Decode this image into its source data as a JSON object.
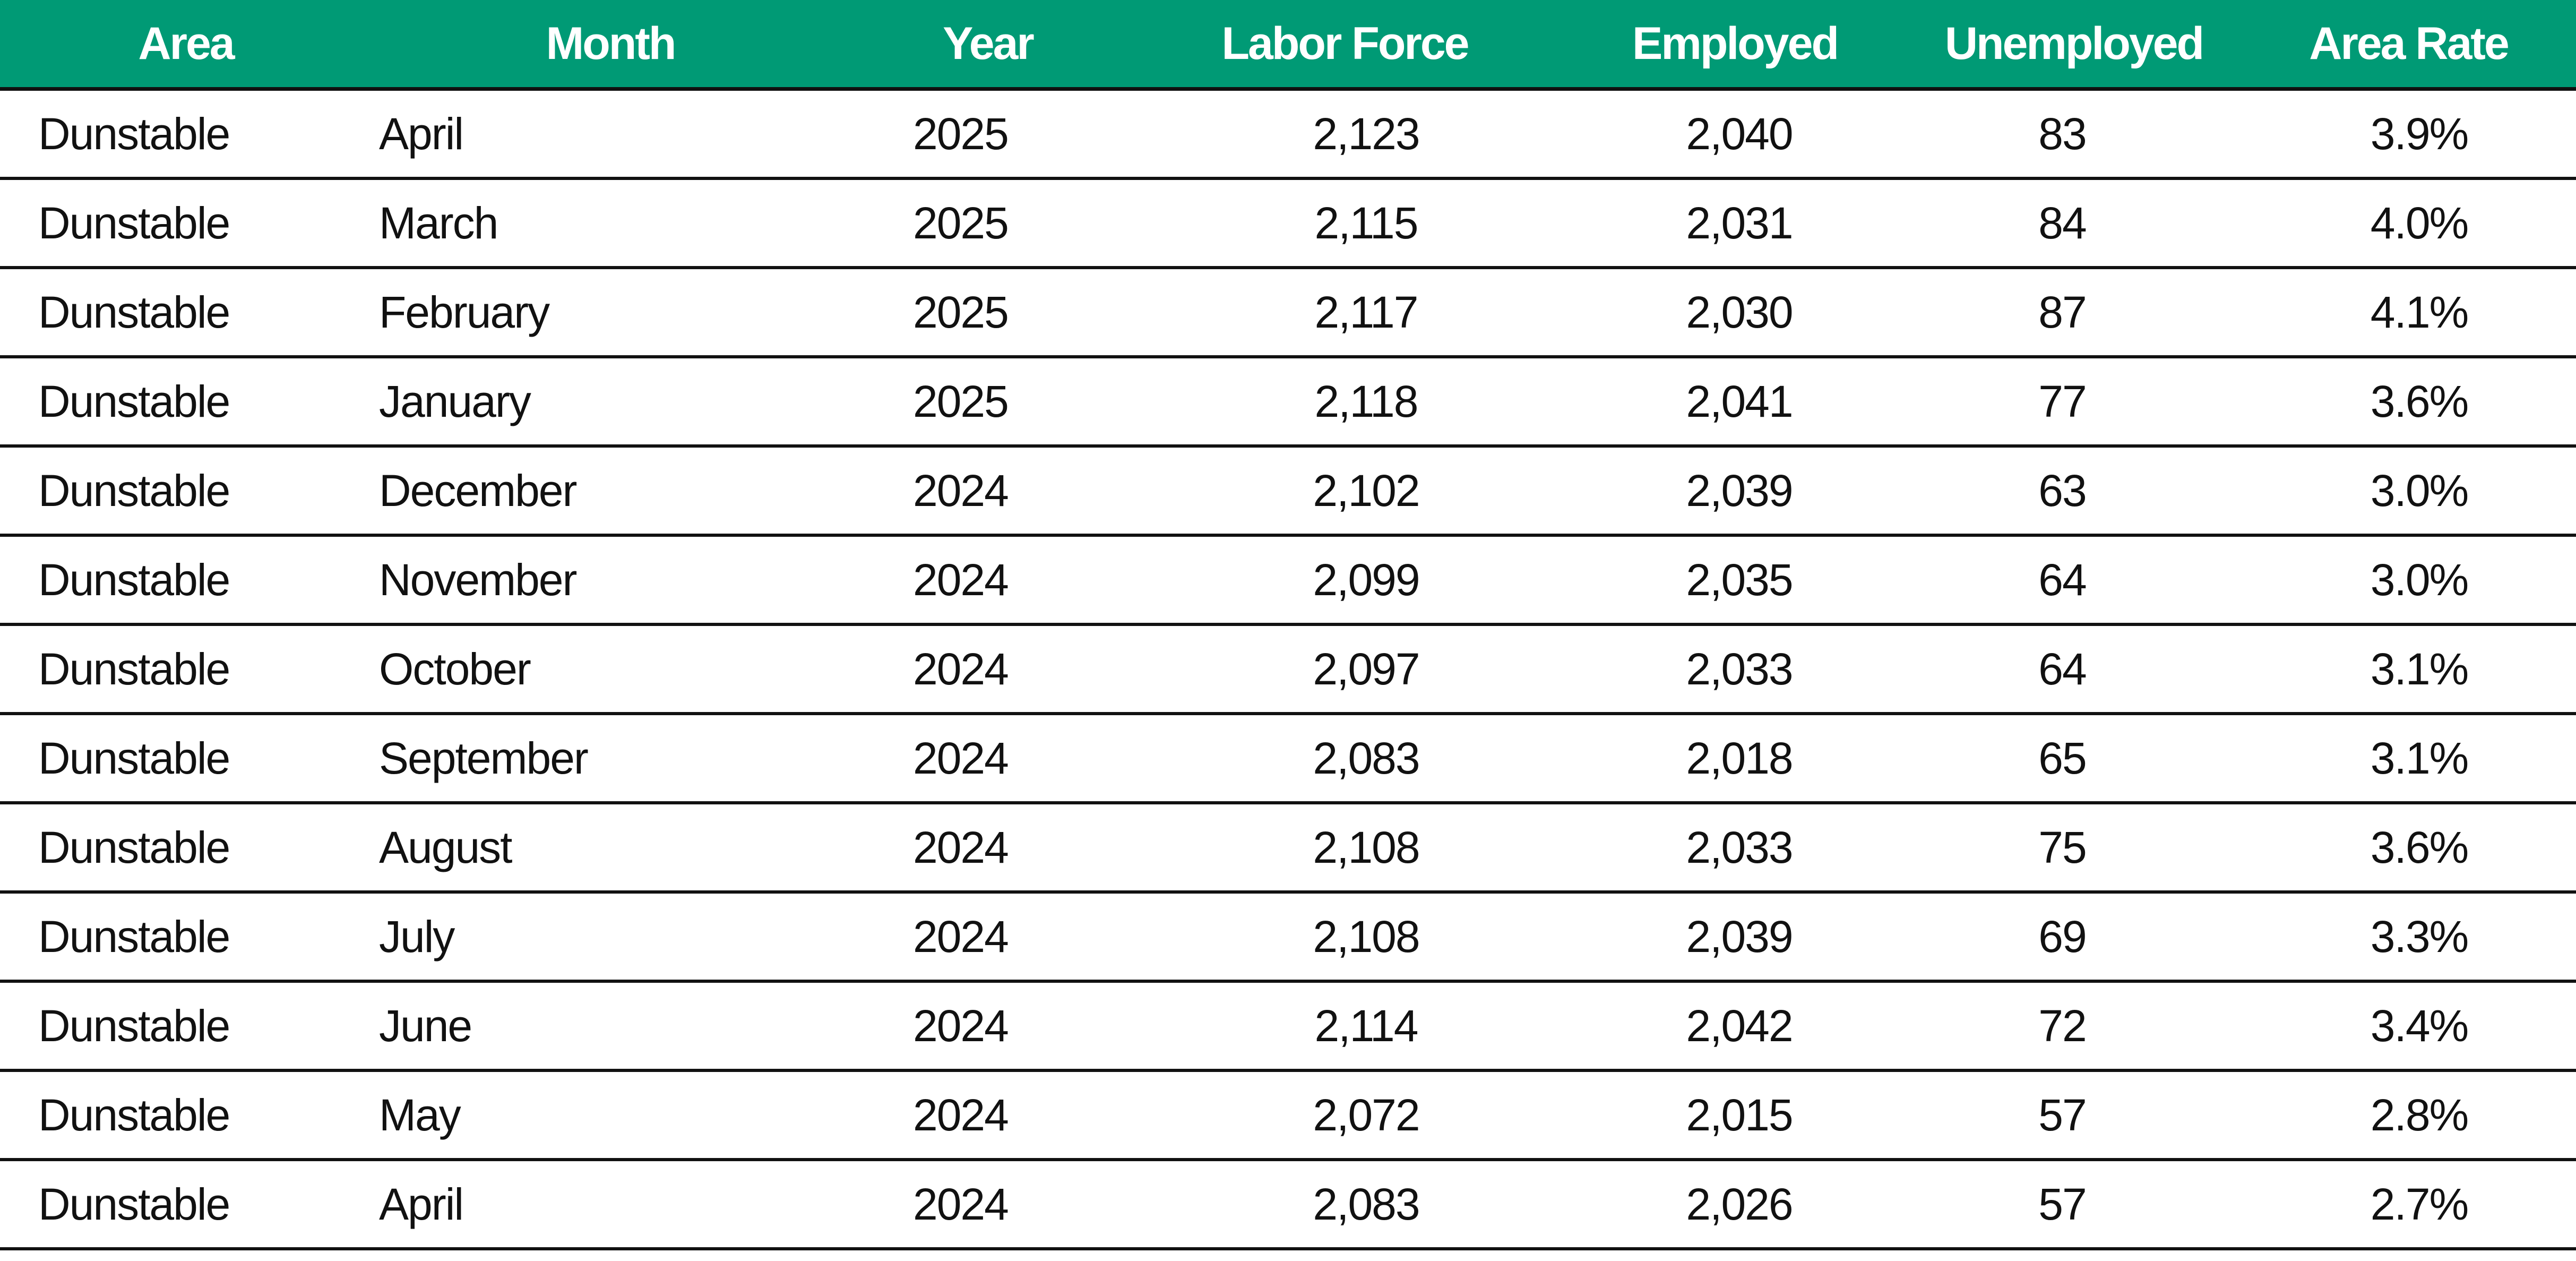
{
  "table": {
    "columns": [
      "Area",
      "Month",
      "Year",
      "Labor Force",
      "Employed",
      "Unemployed",
      "Area Rate"
    ],
    "rows": [
      [
        "Dunstable",
        "April",
        "2025",
        "2,123",
        "2,040",
        "83",
        "3.9%"
      ],
      [
        "Dunstable",
        "March",
        "2025",
        "2,115",
        "2,031",
        "84",
        "4.0%"
      ],
      [
        "Dunstable",
        "February",
        "2025",
        "2,117",
        "2,030",
        "87",
        "4.1%"
      ],
      [
        "Dunstable",
        "January",
        "2025",
        "2,118",
        "2,041",
        "77",
        "3.6%"
      ],
      [
        "Dunstable",
        "December",
        "2024",
        "2,102",
        "2,039",
        "63",
        "3.0%"
      ],
      [
        "Dunstable",
        "November",
        "2024",
        "2,099",
        "2,035",
        "64",
        "3.0%"
      ],
      [
        "Dunstable",
        "October",
        "2024",
        "2,097",
        "2,033",
        "64",
        "3.1%"
      ],
      [
        "Dunstable",
        "September",
        "2024",
        "2,083",
        "2,018",
        "65",
        "3.1%"
      ],
      [
        "Dunstable",
        "August",
        "2024",
        "2,108",
        "2,033",
        "75",
        "3.6%"
      ],
      [
        "Dunstable",
        "July",
        "2024",
        "2,108",
        "2,039",
        "69",
        "3.3%"
      ],
      [
        "Dunstable",
        "June",
        "2024",
        "2,114",
        "2,042",
        "72",
        "3.4%"
      ],
      [
        "Dunstable",
        "May",
        "2024",
        "2,072",
        "2,015",
        "57",
        "2.8%"
      ],
      [
        "Dunstable",
        "April",
        "2024",
        "2,083",
        "2,026",
        "57",
        "2.7%"
      ]
    ]
  },
  "colors": {
    "header_background": "#009a75",
    "header_text": "#ffffff",
    "body_text": "#111111",
    "row_divider": "#111111"
  }
}
